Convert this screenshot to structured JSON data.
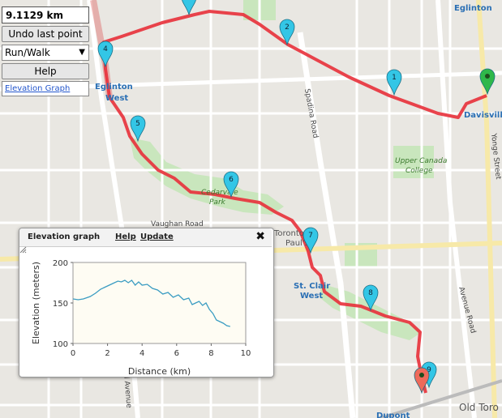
{
  "controls": {
    "distance": "9.1129 km",
    "undo_label": "Undo last point",
    "mode_selected": "Run/Walk",
    "help_label": "Help",
    "elevation_link": "Elevation Graph"
  },
  "map": {
    "labels": {
      "eglinton_top": "Eglinton",
      "eglinton_west_1": "Eglinton",
      "eglinton_west_2": "West",
      "davisville": "Davisville",
      "spadina_road": "Spadina Road",
      "yonge_street": "Yonge Street",
      "ucc_1": "Upper Canada",
      "ucc_2": "College",
      "cedarvale_1": "Cedarvale",
      "cedarvale_2": "Park",
      "vaughan_road": "Vaughan Road",
      "toronto_st_paul_1": "Toronto St.",
      "toronto_st_paul_2": "Paul's",
      "st_clair_west_1": "St. Clair",
      "st_clair_west_2": "West",
      "avenue_road": "Avenue Road",
      "dupont": "Dupont",
      "old_toronto": "Old Toro",
      "avenue_left": "d Avenue"
    },
    "markers": [
      "1",
      "2",
      "4",
      "5",
      "6",
      "7",
      "8",
      "9"
    ],
    "colors": {
      "route": "#e8303a",
      "marker": "#33c6e6",
      "start": "#2fb84a",
      "end": "#ee6a5a"
    }
  },
  "elevation_popup": {
    "title": "Elevation graph",
    "help": "Help",
    "update": "Update",
    "close": "✖"
  },
  "chart_data": {
    "type": "line",
    "xlabel": "Distance (km)",
    "ylabel": "Elevation (meters)",
    "xlim": [
      0,
      10
    ],
    "ylim": [
      100,
      200
    ],
    "xticks": [
      "0",
      "2",
      "4",
      "6",
      "8",
      "10"
    ],
    "yticks": [
      "100",
      "150",
      "200"
    ],
    "grid": false,
    "x": [
      0,
      0.3,
      0.6,
      1.0,
      1.3,
      1.6,
      2.0,
      2.3,
      2.6,
      2.8,
      3.0,
      3.2,
      3.4,
      3.6,
      3.8,
      4.0,
      4.3,
      4.6,
      4.9,
      5.2,
      5.5,
      5.8,
      6.1,
      6.4,
      6.7,
      6.9,
      7.1,
      7.3,
      7.5,
      7.7,
      7.9,
      8.1,
      8.3,
      8.5,
      8.7,
      8.9,
      9.1
    ],
    "y": [
      155,
      154,
      155,
      158,
      162,
      167,
      171,
      174,
      177,
      176,
      178,
      175,
      178,
      172,
      176,
      172,
      173,
      168,
      166,
      161,
      163,
      157,
      160,
      154,
      156,
      148,
      150,
      152,
      147,
      150,
      142,
      137,
      129,
      127,
      125,
      122,
      121
    ]
  }
}
